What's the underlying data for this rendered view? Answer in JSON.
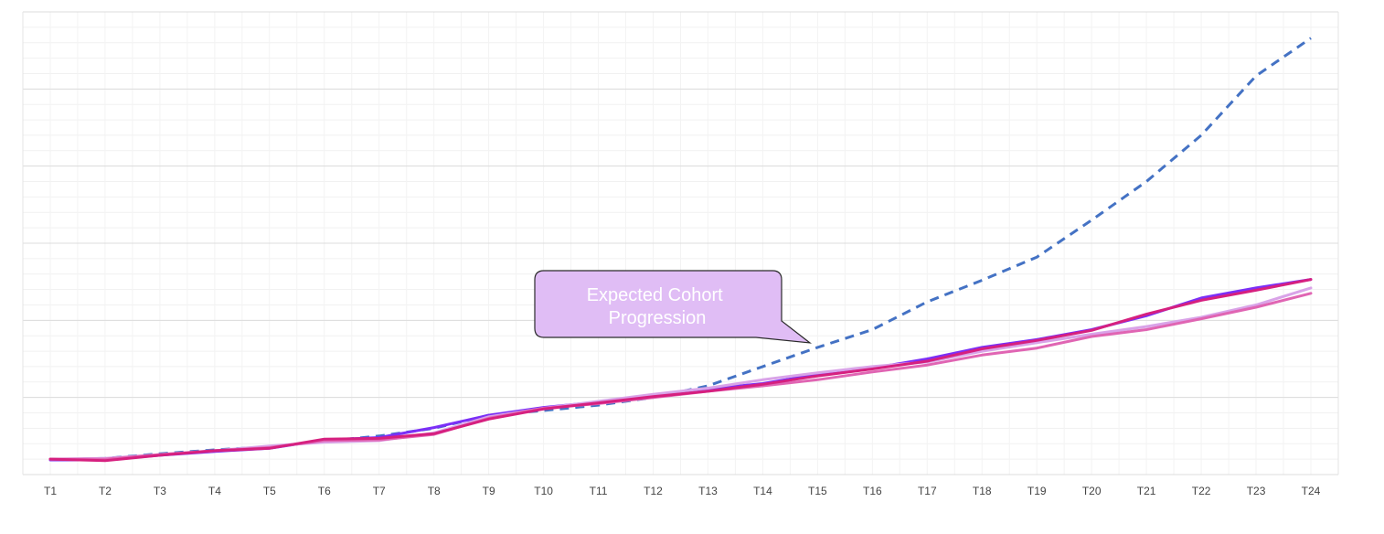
{
  "chart_data": {
    "type": "line",
    "title": "",
    "xlabel": "",
    "ylabel": "",
    "categories": [
      "T1",
      "T2",
      "T3",
      "T4",
      "T5",
      "T6",
      "T7",
      "T8",
      "T9",
      "T10",
      "T11",
      "T12",
      "T13",
      "T14",
      "T15",
      "T16",
      "T17",
      "T18",
      "T19",
      "T20",
      "T21",
      "T22",
      "T23",
      "T24"
    ],
    "ylim": [
      0,
      6
    ],
    "grid": true,
    "y_tick_labels_shown": false,
    "legend": "none",
    "series": [
      {
        "color": "#4472C4",
        "style": "dashed",
        "width": 3,
        "values": [
          0.19,
          0.21,
          0.27,
          0.32,
          0.36,
          0.43,
          0.5,
          0.6,
          0.77,
          0.83,
          0.9,
          1.0,
          1.15,
          1.4,
          1.65,
          1.88,
          2.24,
          2.52,
          2.82,
          3.3,
          3.8,
          4.4,
          5.17,
          5.66
        ]
      },
      {
        "color": "#7B2FF7",
        "style": "solid",
        "width": 3,
        "values": [
          0.19,
          0.19,
          0.25,
          0.3,
          0.34,
          0.45,
          0.48,
          0.61,
          0.77,
          0.87,
          0.94,
          1.03,
          1.11,
          1.18,
          1.3,
          1.38,
          1.5,
          1.65,
          1.75,
          1.88,
          2.06,
          2.29,
          2.42,
          2.53
        ]
      },
      {
        "color": "#D9A3E8",
        "style": "solid",
        "width": 3,
        "values": [
          0.2,
          0.21,
          0.26,
          0.31,
          0.37,
          0.42,
          0.44,
          0.54,
          0.75,
          0.86,
          0.95,
          1.04,
          1.12,
          1.23,
          1.32,
          1.4,
          1.46,
          1.6,
          1.71,
          1.82,
          1.92,
          2.04,
          2.2,
          2.42
        ]
      },
      {
        "color": "#E065B3",
        "style": "solid",
        "width": 3,
        "values": [
          0.2,
          0.2,
          0.26,
          0.31,
          0.35,
          0.44,
          0.45,
          0.52,
          0.73,
          0.86,
          0.92,
          1.0,
          1.08,
          1.15,
          1.23,
          1.33,
          1.42,
          1.55,
          1.64,
          1.79,
          1.88,
          2.02,
          2.17,
          2.35
        ]
      },
      {
        "color": "#D6207F",
        "style": "solid",
        "width": 3,
        "values": [
          0.2,
          0.18,
          0.25,
          0.31,
          0.34,
          0.46,
          0.47,
          0.53,
          0.72,
          0.85,
          0.93,
          1.01,
          1.08,
          1.17,
          1.28,
          1.37,
          1.47,
          1.63,
          1.74,
          1.87,
          2.08,
          2.26,
          2.39,
          2.53
        ]
      }
    ],
    "annotations": [
      {
        "text": "Expected Cohort Progression",
        "fill": "#E0BDF5",
        "border": "#2b2b2b",
        "text_color": "#ffffff",
        "points_to": "T15"
      }
    ]
  }
}
